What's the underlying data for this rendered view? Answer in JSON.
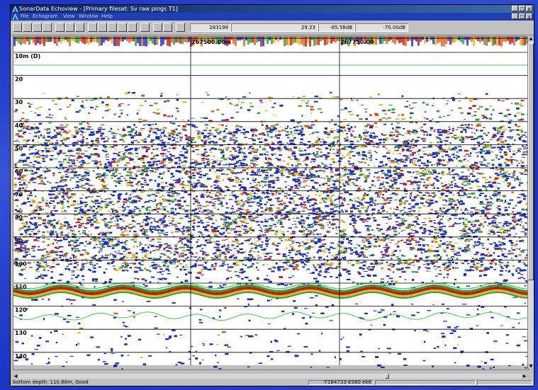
{
  "window": {
    "title": "SonarData Echoview - [Primary fileset: Sv raw pings T1]",
    "menu": [
      "File",
      "Echogram",
      "View",
      "Window",
      "Help"
    ],
    "controls": [
      "_",
      "□",
      "x"
    ]
  },
  "toolbar": {
    "ping_readout": "283199",
    "range_readout": "29.23",
    "sv_readout": "-85.58dB",
    "threshold_readout": "-70.00dB"
  },
  "echogram": {
    "distance_labels": [
      "267500.00m",
      "267750.00"
    ],
    "depth_labels": [
      "10m (D)",
      "20",
      "30",
      "40",
      "50",
      "60",
      "70",
      "80",
      "90",
      "100",
      "110",
      "120",
      "130",
      "140"
    ],
    "colors": {
      "weak": "#1a2fbf",
      "low": "#2f9e3a",
      "mid": "#d4c21a",
      "high": "#e0661a",
      "strong": "#c81818",
      "bottom_line": "#38d438",
      "grid": "#000000"
    }
  },
  "statusbar": {
    "left_text": "bottom depth: 110.86m, Good",
    "file_text": "-T184733-ES60 ek6"
  }
}
